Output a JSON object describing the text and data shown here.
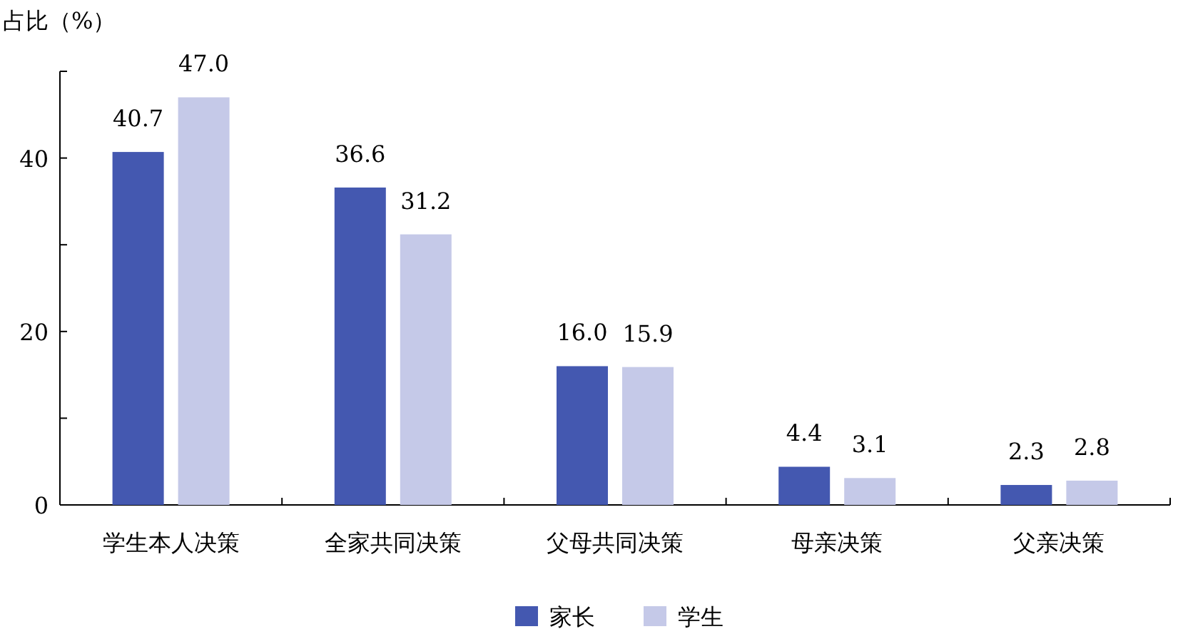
{
  "chart_data": {
    "type": "bar",
    "ylabel": "占比（%）",
    "categories": [
      "学生本人决策",
      "全家共同决策",
      "父母共同决策",
      "母亲决策",
      "父亲决策"
    ],
    "series": [
      {
        "name": "家长",
        "color": "#4458b0",
        "values": [
          40.7,
          36.6,
          16.0,
          4.4,
          2.3
        ],
        "value_labels": [
          "40.7",
          "36.6",
          "16.0",
          "4.4",
          "2.3"
        ]
      },
      {
        "name": "学生",
        "color": "#c5c9e8",
        "values": [
          47.0,
          31.2,
          15.9,
          3.1,
          2.8
        ],
        "value_labels": [
          "47.0",
          "31.2",
          "15.9",
          "3.1",
          "2.8"
        ]
      }
    ],
    "ylim": [
      0,
      50
    ],
    "yticks": [
      0,
      {
        "value": 10,
        "label": null
      },
      20,
      {
        "value": 30,
        "label": null
      },
      40,
      {
        "value": 50,
        "label": null
      }
    ],
    "legend": "bottom",
    "grid": false
  }
}
